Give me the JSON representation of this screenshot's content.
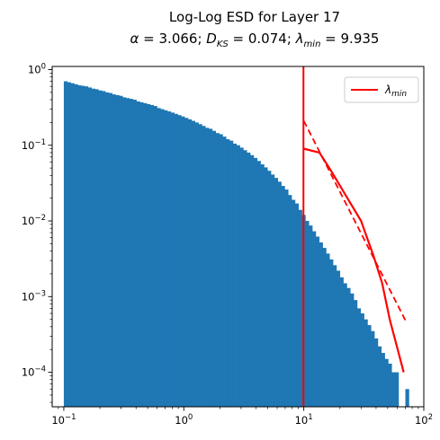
{
  "chart_data": {
    "type": "bar",
    "title": "Log-Log ESD for Layer 17",
    "subtitle": "α = 3.066; D_KS = 0.074; λ_min = 9.935",
    "subtitle_parts": {
      "alpha": "3.066",
      "d_ks": "0.074",
      "lambda_min": "9.935"
    },
    "xlabel": "",
    "ylabel": "",
    "x_scale": "log",
    "y_scale": "log",
    "xlim": [
      0.08,
      100
    ],
    "ylim": [
      3.5e-05,
      1.1
    ],
    "x_ticks": [
      0.1,
      1,
      10,
      100
    ],
    "x_tick_labels": [
      "10^-1",
      "10^0",
      "10^1",
      "10^2"
    ],
    "y_ticks": [
      0.0001,
      0.001,
      0.01,
      0.1,
      1
    ],
    "y_tick_labels": [
      "10^-4",
      "10^-3",
      "10^-2",
      "10^-1",
      "10^0"
    ],
    "grid": false,
    "histogram": {
      "color": "#1f77b4",
      "bin_edges_range": [
        0.1,
        75
      ],
      "bins": 100,
      "values": [
        0.7,
        0.68,
        0.66,
        0.64,
        0.62,
        0.61,
        0.6,
        0.58,
        0.56,
        0.55,
        0.53,
        0.52,
        0.5,
        0.49,
        0.47,
        0.46,
        0.45,
        0.43,
        0.42,
        0.41,
        0.4,
        0.38,
        0.37,
        0.36,
        0.35,
        0.34,
        0.33,
        0.31,
        0.3,
        0.29,
        0.28,
        0.27,
        0.26,
        0.25,
        0.24,
        0.23,
        0.22,
        0.21,
        0.2,
        0.19,
        0.18,
        0.17,
        0.165,
        0.155,
        0.145,
        0.14,
        0.13,
        0.12,
        0.115,
        0.105,
        0.1,
        0.093,
        0.086,
        0.08,
        0.074,
        0.068,
        0.062,
        0.056,
        0.051,
        0.046,
        0.041,
        0.037,
        0.033,
        0.029,
        0.026,
        0.022,
        0.019,
        0.017,
        0.014,
        0.012,
        0.01,
        0.0087,
        0.0073,
        0.0062,
        0.0052,
        0.0044,
        0.0037,
        0.0031,
        0.0026,
        0.0022,
        0.0018,
        0.0015,
        0.0013,
        0.0011,
        0.0009,
        0.0007,
        0.0006,
        0.0005,
        0.00042,
        0.00035,
        0.00028,
        0.00022,
        0.00018,
        0.00015,
        0.00013,
        0.0001,
        0.0001,
        0,
        0,
        6e-05
      ]
    },
    "lambda_min_line": {
      "x": 9.935,
      "color": "#ff0000",
      "name": "λ_min"
    },
    "empirical_pdf_line": {
      "color": "#ff0000",
      "style": "solid",
      "x": [
        10,
        13.5,
        17,
        30,
        38,
        45,
        52,
        68
      ],
      "y": [
        0.09,
        0.08,
        0.045,
        0.01,
        0.0035,
        0.0015,
        0.0005,
        0.0001
      ]
    },
    "power_law_fit_line": {
      "color": "#ff0000",
      "style": "dashed",
      "x": [
        10,
        72
      ],
      "y": [
        0.21,
        0.00045
      ]
    },
    "legend": {
      "placement": "top-right",
      "entries": [
        "λ_min"
      ]
    }
  }
}
